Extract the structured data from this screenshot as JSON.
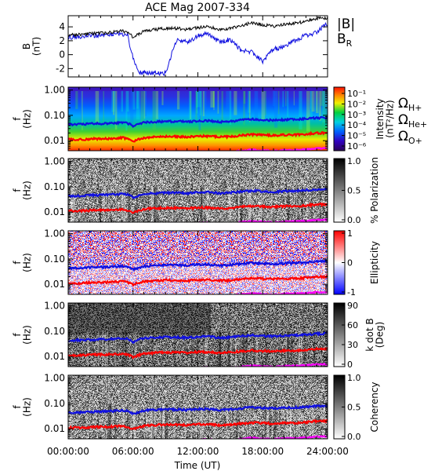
{
  "chart_data": {
    "type": "line",
    "title": "ACE Mag 2007-334",
    "xlabel": "Time (UT)",
    "x_ticks": [
      "00:00:00",
      "06:00:00",
      "12:00:00",
      "18:00:00",
      "24:00:00"
    ],
    "x_range_hours": [
      0,
      24
    ],
    "freq_ticks": [
      "1.00",
      "0.10",
      "0.01"
    ],
    "freq_range_hz": [
      0.004,
      1.3
    ],
    "freq_scale": "log",
    "line_colors": {
      "B": "#000000",
      "BR": "#1010e0",
      "H": "#1010e0",
      "He": "#ff0000",
      "O": "#ff00ff"
    },
    "panels": [
      {
        "id": "field",
        "ylabel": "B\n(nT)",
        "y_ticks": [
          4,
          2,
          0,
          -2
        ],
        "ylim": [
          -3.2,
          5.6
        ],
        "legend": [
          {
            "label": "|B|",
            "color": "#000000"
          },
          {
            "label": "B",
            "sub": "R",
            "color": "#1010e0"
          }
        ],
        "series": [
          {
            "name": "|B|",
            "color": "#000000",
            "x": [
              0,
              1,
              2,
              3,
              4,
              5,
              5.5,
              6,
              7,
              8,
              9,
              10,
              11,
              12,
              13,
              14,
              15,
              16,
              17,
              18,
              19,
              20,
              21,
              22,
              23,
              24
            ],
            "values": [
              2.8,
              2.9,
              3.0,
              3.1,
              3.2,
              3.4,
              3.2,
              2.5,
              3.4,
              3.6,
              3.8,
              3.8,
              3.6,
              3.9,
              4.0,
              3.6,
              3.8,
              4.2,
              4.6,
              4.3,
              4.1,
              4.4,
              4.5,
              4.8,
              5.2,
              5.3
            ]
          },
          {
            "name": "B",
            "color": "#1010e0",
            "x": [
              0,
              1,
              2,
              3,
              4,
              5,
              5.5,
              6,
              6.5,
              7,
              8,
              9,
              10,
              11,
              12,
              13,
              14,
              15,
              16,
              17,
              18,
              19,
              20,
              21,
              22,
              23,
              24
            ],
            "values": [
              2.5,
              2.6,
              2.7,
              2.8,
              2.9,
              3.0,
              2.8,
              -0.5,
              -2.6,
              -2.5,
              -2.6,
              -2.7,
              2.0,
              1.8,
              2.7,
              3.0,
              1.8,
              2.2,
              0.6,
              0.4,
              -1.0,
              0.8,
              1.2,
              2.0,
              2.8,
              3.2,
              4.5
            ]
          }
        ]
      },
      {
        "id": "intensity",
        "ylabel": "f\n(Hz)",
        "colorbar_label": "Intensity\n(nT²/Hz)",
        "colorbar_ticks": [
          "10⁻¹",
          "10⁻²",
          "10⁻³",
          "10⁻⁴",
          "10⁻⁵",
          "10⁻⁶"
        ],
        "colormap": "rainbow",
        "gyro_labels": [
          {
            "label": "Ω",
            "sub": "H+",
            "color": "#1010e0"
          },
          {
            "label": "Ω",
            "sub": "He+",
            "color": "#ff0000"
          },
          {
            "label": "Ω",
            "sub": "O+",
            "color": "#ff00ff"
          }
        ]
      },
      {
        "id": "polarization",
        "ylabel": "f\n(Hz)",
        "colorbar_label": "% Polarization",
        "colorbar_ticks": [
          "1.0",
          "0.5",
          "0.0"
        ],
        "colormap": "gray"
      },
      {
        "id": "ellipticity",
        "ylabel": "f\n(Hz)",
        "colorbar_label": "Ellipticity",
        "colorbar_ticks": [
          "1",
          "0",
          "-1"
        ],
        "colormap": "bwr"
      },
      {
        "id": "kdotb",
        "ylabel": "f\n(Hz)",
        "colorbar_label": "k dot B\n(Deg)",
        "colorbar_ticks": [
          "90",
          "60",
          "30",
          "0"
        ],
        "colormap": "gray"
      },
      {
        "id": "coherency",
        "ylabel": "f\n(Hz)",
        "colorbar_label": "Coherency",
        "colorbar_ticks": [
          "1.0",
          "0.5",
          "0.0"
        ],
        "colormap": "gray"
      }
    ],
    "gyrofrequency_hz": {
      "x": [
        0,
        1,
        2,
        3,
        4,
        5,
        5.5,
        6,
        7,
        8,
        9,
        10,
        11,
        12,
        13,
        14,
        15,
        16,
        17,
        18,
        19,
        20,
        21,
        22,
        23,
        24
      ],
      "H": [
        0.043,
        0.044,
        0.046,
        0.047,
        0.049,
        0.052,
        0.049,
        0.038,
        0.052,
        0.055,
        0.058,
        0.058,
        0.055,
        0.06,
        0.061,
        0.055,
        0.058,
        0.064,
        0.07,
        0.066,
        0.063,
        0.067,
        0.069,
        0.073,
        0.079,
        0.081
      ],
      "He": [
        0.011,
        0.011,
        0.0115,
        0.012,
        0.012,
        0.013,
        0.012,
        0.0095,
        0.013,
        0.014,
        0.0145,
        0.0145,
        0.014,
        0.015,
        0.015,
        0.014,
        0.0145,
        0.016,
        0.0175,
        0.0165,
        0.016,
        0.017,
        0.017,
        0.018,
        0.02,
        0.02
      ],
      "O": [
        0.0027,
        0.0028,
        0.0029,
        0.003,
        0.003,
        0.0032,
        0.0031,
        0.0024,
        0.0032,
        0.0034,
        0.0036,
        0.0036,
        0.0034,
        0.0037,
        0.0038,
        0.0034,
        0.0036,
        0.004,
        0.0044,
        0.0041,
        0.0039,
        0.0042,
        0.0043,
        0.0045,
        0.0049,
        0.005
      ]
    }
  }
}
